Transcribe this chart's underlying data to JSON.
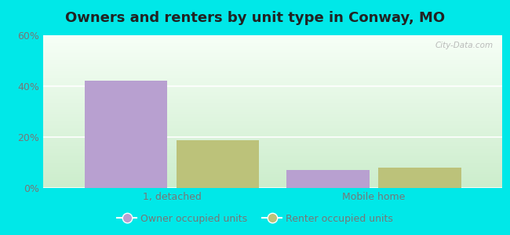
{
  "title": "Owners and renters by unit type in Conway, MO",
  "categories": [
    "1, detached",
    "Mobile home"
  ],
  "owner_values": [
    42.3,
    7.1
  ],
  "renter_values": [
    18.9,
    8.0
  ],
  "owner_color": "#b8a0d0",
  "renter_color": "#bcc27a",
  "ylim": [
    0,
    60
  ],
  "yticks": [
    0,
    20,
    40,
    60
  ],
  "ytick_labels": [
    "0%",
    "20%",
    "40%",
    "60%"
  ],
  "bar_width": 0.18,
  "group_positions": [
    0.28,
    0.72
  ],
  "owner_offsets": [
    -0.1,
    -0.1
  ],
  "renter_offsets": [
    0.1,
    0.1
  ],
  "legend_owner": "Owner occupied units",
  "legend_renter": "Renter occupied units",
  "bg_outer": "#00e8e8",
  "bg_plot_top": "#f0faf0",
  "bg_plot_bottom": "#c8eec8",
  "watermark": "City-Data.com",
  "title_fontsize": 13,
  "tick_fontsize": 9,
  "legend_fontsize": 9,
  "title_color": "#222222",
  "tick_color": "#777777"
}
